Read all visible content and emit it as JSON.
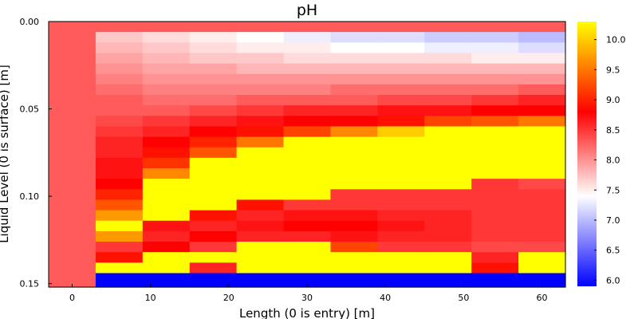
{
  "chart_data": {
    "type": "heatmap",
    "title": "pH",
    "xlabel": "Length (0 is entry) [m]",
    "ylabel": "Liquid Level (0 is surface) [m]",
    "xlim": [
      -3,
      63
    ],
    "ylim": [
      0.0,
      0.152
    ],
    "y_inverted": true,
    "x_ticks": [
      "0",
      "10",
      "20",
      "30",
      "40",
      "50",
      "60"
    ],
    "y_ticks": [
      "0.00",
      "0.05",
      "0.10",
      "0.15"
    ],
    "colorbar": {
      "ticks": [
        "6.0",
        "6.5",
        "7.0",
        "7.5",
        "8.0",
        "8.5",
        "9.0",
        "9.5",
        "10.0"
      ],
      "range": [
        5.9,
        10.3
      ],
      "colors": [
        "#0000ff",
        "#ffffff",
        "#ff0000",
        "#ffff00"
      ],
      "stops": [
        5.9,
        7.4,
        8.8,
        10.3
      ]
    },
    "grid": false,
    "legend": "colorbar-right",
    "x_edges": [
      -3,
      3,
      9,
      15,
      21,
      27,
      33,
      39,
      45,
      51,
      57,
      63
    ],
    "y_edges": [
      0.0,
      0.006,
      0.012,
      0.018,
      0.024,
      0.03,
      0.036,
      0.042,
      0.048,
      0.054,
      0.06,
      0.066,
      0.072,
      0.078,
      0.084,
      0.09,
      0.096,
      0.102,
      0.108,
      0.114,
      0.12,
      0.126,
      0.132,
      0.138,
      0.144,
      0.152
    ],
    "z": [
      [
        8.3,
        8.3,
        8.3,
        8.3,
        8.3,
        8.3,
        8.3,
        8.3,
        8.3,
        8.3,
        8.3
      ],
      [
        8.3,
        7.7,
        7.6,
        7.5,
        7.4,
        7.3,
        7.2,
        7.2,
        7.1,
        7.1,
        7.0
      ],
      [
        8.3,
        7.8,
        7.7,
        7.6,
        7.5,
        7.5,
        7.4,
        7.4,
        7.3,
        7.3,
        7.2
      ],
      [
        8.3,
        7.9,
        7.8,
        7.7,
        7.7,
        7.6,
        7.6,
        7.6,
        7.6,
        7.5,
        7.5
      ],
      [
        8.3,
        8.0,
        7.9,
        7.9,
        7.8,
        7.8,
        7.8,
        7.8,
        7.8,
        7.8,
        7.8
      ],
      [
        8.3,
        8.1,
        8.0,
        8.0,
        8.0,
        8.0,
        8.0,
        8.0,
        8.0,
        8.0,
        8.0
      ],
      [
        8.3,
        8.2,
        8.1,
        8.1,
        8.1,
        8.1,
        8.2,
        8.2,
        8.2,
        8.2,
        8.3
      ],
      [
        8.3,
        8.3,
        8.2,
        8.2,
        8.3,
        8.3,
        8.3,
        8.4,
        8.4,
        8.5,
        8.6
      ],
      [
        8.3,
        8.3,
        8.3,
        8.4,
        8.5,
        8.6,
        8.6,
        8.7,
        8.7,
        8.8,
        8.8
      ],
      [
        8.3,
        8.4,
        8.5,
        8.6,
        8.7,
        8.8,
        8.8,
        8.9,
        9.2,
        9.3,
        9.5
      ],
      [
        8.3,
        8.5,
        8.6,
        8.8,
        8.9,
        9.2,
        9.6,
        10.0,
        10.3,
        10.3,
        10.3
      ],
      [
        8.3,
        8.6,
        8.8,
        9.0,
        9.5,
        10.3,
        10.3,
        10.3,
        10.3,
        10.3,
        10.3
      ],
      [
        8.3,
        8.6,
        8.9,
        9.3,
        10.3,
        10.3,
        10.3,
        10.3,
        10.3,
        10.3,
        10.3
      ],
      [
        8.3,
        8.7,
        9.1,
        10.3,
        10.3,
        10.3,
        10.3,
        10.3,
        10.3,
        10.3,
        10.3
      ],
      [
        8.3,
        8.7,
        9.6,
        10.3,
        10.3,
        10.3,
        10.3,
        10.3,
        10.3,
        10.3,
        10.3
      ],
      [
        8.3,
        8.8,
        10.3,
        10.3,
        10.3,
        10.3,
        10.3,
        10.3,
        10.3,
        8.5,
        8.4
      ],
      [
        8.3,
        9.0,
        10.3,
        10.3,
        10.3,
        10.3,
        8.5,
        8.5,
        8.5,
        8.5,
        8.5
      ],
      [
        8.3,
        9.3,
        10.3,
        10.3,
        8.9,
        8.5,
        8.5,
        8.5,
        8.5,
        8.5,
        8.5
      ],
      [
        8.3,
        9.7,
        10.3,
        8.9,
        8.6,
        8.7,
        8.7,
        8.6,
        8.6,
        8.5,
        8.5
      ],
      [
        8.3,
        10.3,
        8.7,
        8.6,
        8.7,
        8.8,
        8.8,
        8.7,
        8.6,
        8.5,
        8.5
      ],
      [
        8.3,
        9.7,
        8.6,
        8.8,
        8.6,
        8.6,
        8.7,
        8.6,
        8.6,
        8.5,
        8.5
      ],
      [
        8.3,
        8.5,
        8.8,
        8.5,
        10.3,
        10.3,
        9.2,
        8.5,
        8.5,
        8.4,
        8.4
      ],
      [
        8.3,
        8.9,
        10.3,
        10.3,
        10.3,
        10.3,
        10.3,
        10.3,
        10.3,
        8.6,
        10.3
      ],
      [
        8.3,
        10.3,
        10.3,
        8.6,
        10.3,
        10.3,
        10.3,
        10.3,
        10.3,
        8.9,
        10.3
      ],
      [
        8.3,
        5.9,
        5.9,
        5.9,
        5.9,
        5.9,
        5.9,
        5.9,
        5.9,
        5.9,
        5.9
      ]
    ]
  }
}
